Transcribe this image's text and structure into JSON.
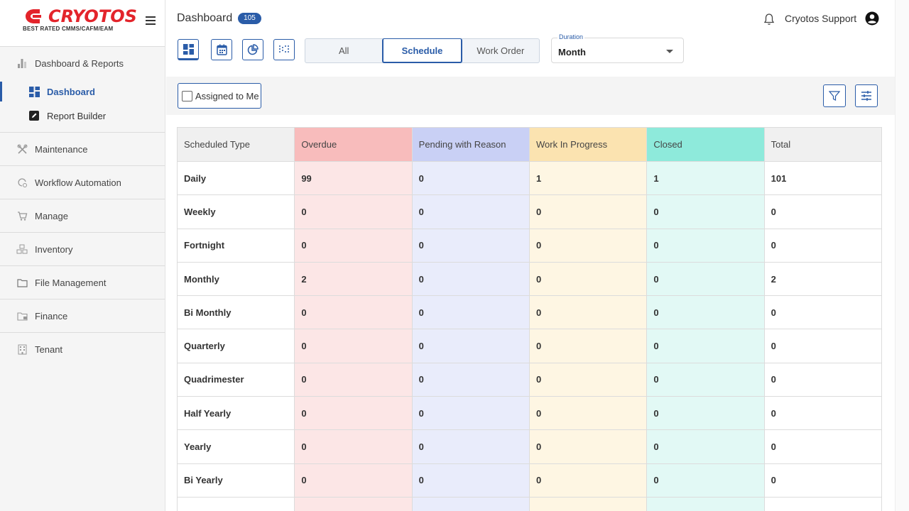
{
  "brand": {
    "name": "CRYOTOS",
    "tagline": "BEST RATED CMMS/CAFM/EAM",
    "color": "#e3242b"
  },
  "sidebar": {
    "sections": [
      {
        "label": "Dashboard & Reports",
        "icon": "bar-chart-icon",
        "children": [
          {
            "label": "Dashboard",
            "icon": "dashboard-grid-icon",
            "active": true
          },
          {
            "label": "Report Builder",
            "icon": "edit-icon",
            "active": false
          }
        ]
      },
      {
        "label": "Maintenance",
        "icon": "tools-icon"
      },
      {
        "label": "Workflow Automation",
        "icon": "workflow-icon"
      },
      {
        "label": "Manage",
        "icon": "cart-icon"
      },
      {
        "label": "Inventory",
        "icon": "boxes-icon"
      },
      {
        "label": "File Management",
        "icon": "folder-icon"
      },
      {
        "label": "Finance",
        "icon": "finance-icon"
      },
      {
        "label": "Tenant",
        "icon": "building-icon"
      }
    ]
  },
  "header": {
    "title": "Dashboard",
    "badge": "105",
    "user": "Cryotos Support"
  },
  "view_buttons": [
    "dashboard-grid-icon",
    "calendar-icon",
    "pie-chart-icon",
    "scatter-icon"
  ],
  "segments": {
    "items": [
      "All",
      "Schedule",
      "Work Order"
    ],
    "active": "Schedule"
  },
  "duration": {
    "label": "Duration",
    "value": "Month"
  },
  "filters": {
    "assigned_label": "Assigned to Me"
  },
  "table": {
    "columns": [
      "Scheduled Type",
      "Overdue",
      "Pending with Reason",
      "Work In Progress",
      "Closed",
      "Total"
    ],
    "header_colors": [
      "#f0f0f0",
      "#f8bcbc",
      "#c9d0f5",
      "#fbe3b0",
      "#8eeadb",
      "#f0f0f0"
    ],
    "cell_colors": [
      "#ffffff",
      "#fce6e6",
      "#e9ecfb",
      "#fef6e3",
      "#e2f9f5",
      "#ffffff"
    ],
    "rows": [
      [
        "Daily",
        "99",
        "0",
        "1",
        "1",
        "101"
      ],
      [
        "Weekly",
        "0",
        "0",
        "0",
        "0",
        "0"
      ],
      [
        "Fortnight",
        "0",
        "0",
        "0",
        "0",
        "0"
      ],
      [
        "Monthly",
        "2",
        "0",
        "0",
        "0",
        "2"
      ],
      [
        "Bi Monthly",
        "0",
        "0",
        "0",
        "0",
        "0"
      ],
      [
        "Quarterly",
        "0",
        "0",
        "0",
        "0",
        "0"
      ],
      [
        "Quadrimester",
        "0",
        "0",
        "0",
        "0",
        "0"
      ],
      [
        "Half Yearly",
        "0",
        "0",
        "0",
        "0",
        "0"
      ],
      [
        "Yearly",
        "0",
        "0",
        "0",
        "0",
        "0"
      ],
      [
        "Bi Yearly",
        "0",
        "0",
        "0",
        "0",
        "0"
      ],
      [
        "",
        "",
        "",
        "",
        "",
        ""
      ]
    ]
  }
}
